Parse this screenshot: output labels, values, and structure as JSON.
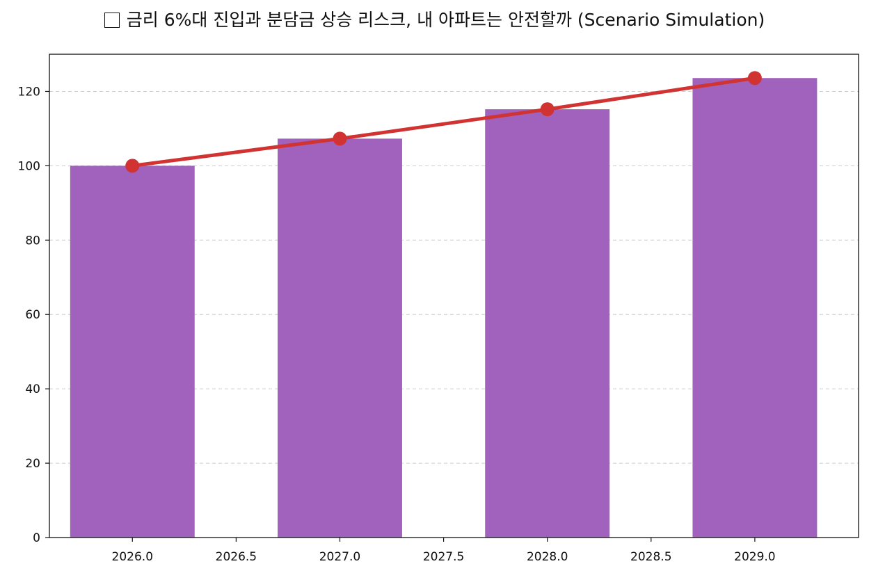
{
  "chart_data": {
    "type": "bar",
    "title": "금리 6%대 진입과 분담금 상승 리스크, 내 아파트는 안전할까 (Scenario Simulation)",
    "title_icon": "checkbox-outline-icon",
    "xlabel": "",
    "ylabel": "",
    "x": [
      2026.0,
      2027.0,
      2028.0,
      2029.0
    ],
    "bar_values": [
      100.0,
      107.3,
      115.2,
      123.6
    ],
    "line_values": [
      100.0,
      107.3,
      115.2,
      123.6
    ],
    "xlim": [
      2025.6,
      2029.5
    ],
    "ylim": [
      0,
      130
    ],
    "x_ticks": [
      2026.0,
      2026.5,
      2027.0,
      2027.5,
      2028.0,
      2028.5,
      2029.0
    ],
    "x_tick_labels": [
      "2026.0",
      "2026.5",
      "2027.0",
      "2027.5",
      "2028.0",
      "2028.5",
      "2029.0"
    ],
    "y_ticks": [
      0,
      20,
      40,
      60,
      80,
      100,
      120
    ],
    "y_tick_labels": [
      "0",
      "20",
      "40",
      "60",
      "80",
      "100",
      "120"
    ],
    "grid": "horizontal-dashed",
    "legend": "none",
    "colors": {
      "bar": "#a162bd",
      "line": "#d13332",
      "grid": "#cccccc",
      "axis": "#111111"
    }
  }
}
